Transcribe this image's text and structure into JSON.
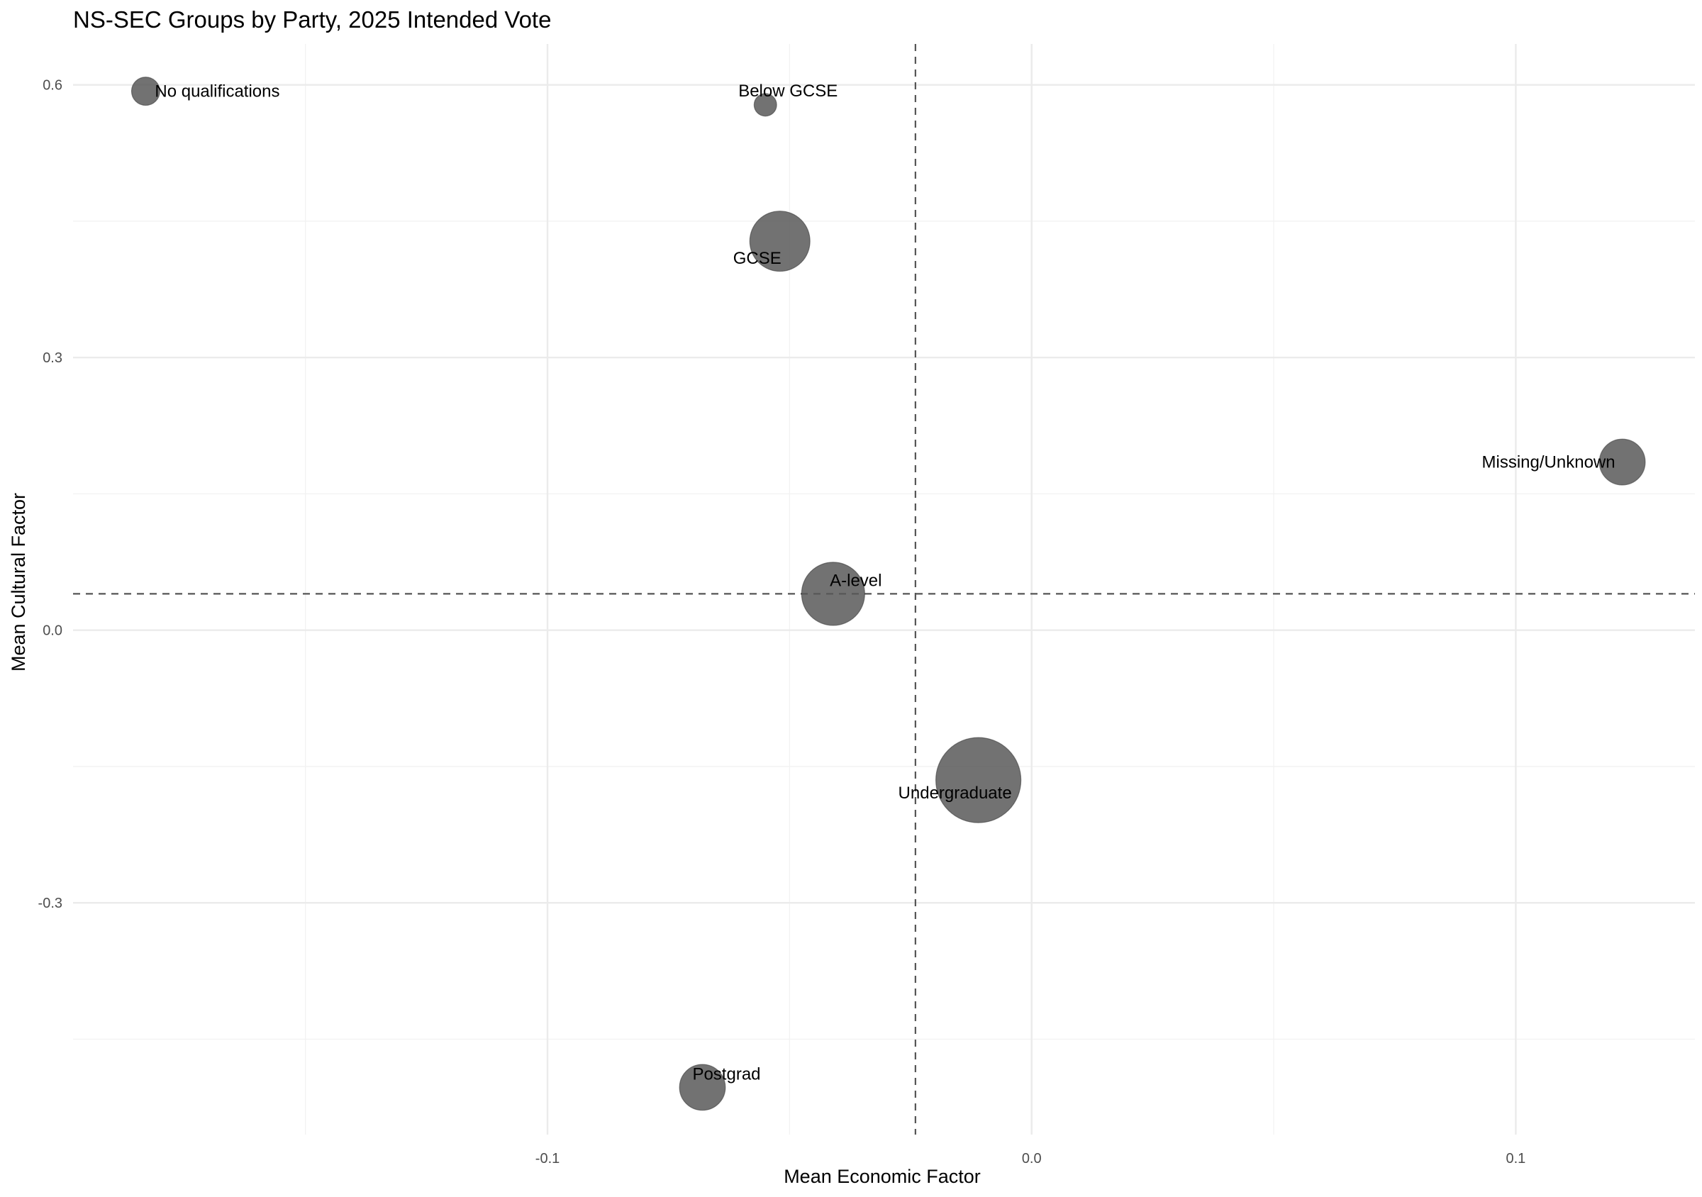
{
  "chart_data": {
    "type": "scatter",
    "title": "NS-SEC Groups by Party, 2025 Intended Vote",
    "xlabel": "Mean Economic Factor",
    "ylabel": "Mean Cultural Factor",
    "xlim": [
      -0.198,
      0.137
    ],
    "ylim": [
      -0.555,
      0.645
    ],
    "x_ticks": [
      -0.1,
      0.0,
      0.1
    ],
    "x_tick_labels": [
      "-0.1",
      "0.0",
      "0.1"
    ],
    "y_ticks": [
      -0.3,
      0.0,
      0.3,
      0.6
    ],
    "y_tick_labels": [
      "-0.3",
      "0.0",
      "0.3",
      "0.6"
    ],
    "grid": true,
    "legend": "none",
    "reference_lines": {
      "vertical_x": -0.024,
      "horizontal_y": 0.04,
      "style": "dashed"
    },
    "marker_color": "#595959",
    "marker_opacity": 0.85,
    "size_note": "Marker area encodes relative group size",
    "points": [
      {
        "label": "No qualifications",
        "x": -0.183,
        "y": 0.593,
        "size": 0.11
      },
      {
        "label": "Below GCSE",
        "x": -0.055,
        "y": 0.578,
        "size": 0.07
      },
      {
        "label": "GCSE",
        "x": -0.052,
        "y": 0.428,
        "size": 0.5
      },
      {
        "label": "Missing/Unknown",
        "x": 0.122,
        "y": 0.185,
        "size": 0.29
      },
      {
        "label": "A-level",
        "x": -0.041,
        "y": 0.04,
        "size": 0.55
      },
      {
        "label": "Undergraduate",
        "x": -0.011,
        "y": -0.165,
        "size": 1.0
      },
      {
        "label": "Postgrad",
        "x": -0.068,
        "y": -0.503,
        "size": 0.29
      }
    ]
  }
}
